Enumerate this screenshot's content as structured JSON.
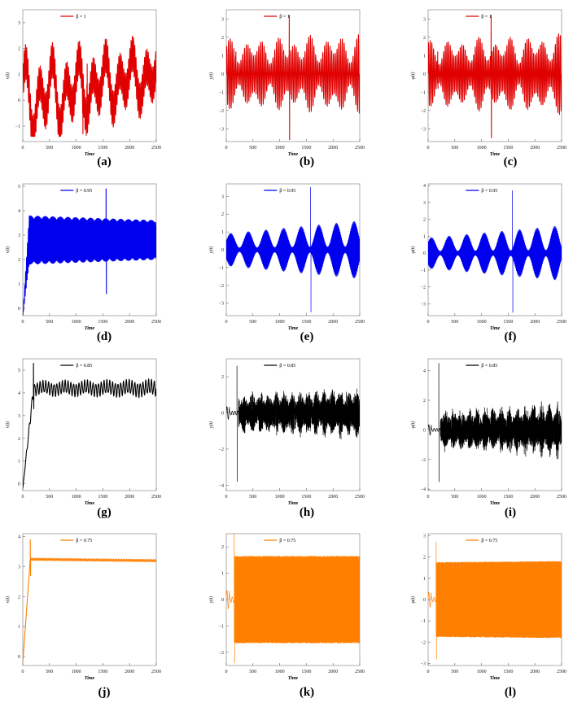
{
  "chart_data": [
    {
      "id": "a",
      "type": "line",
      "caption": "(a)",
      "legend": "β = 1",
      "xlabel": "Time",
      "ylabel": "v(t)",
      "color": "#e00000",
      "xlim": [
        0,
        2500
      ],
      "ylim": [
        -1.6,
        3.5
      ],
      "xticks": [
        0,
        500,
        1000,
        1500,
        2000,
        2500
      ],
      "yticks": [
        -1,
        0,
        1,
        2,
        3
      ],
      "x_start": 0,
      "signal": {
        "base": [
          0,
          1,
          [
            [
              1,
              1.6,
              250,
              0
            ],
            [
              0.6,
              0.9,
              500,
              1.5
            ]
          ]
        ],
        "osc": [
          1,
          1,
          [
            [
              0.7,
              0.35,
              23,
              0.3
            ]
          ]
        ],
        "spikes": [
          [
            1200,
            0.6,
            1.4
          ],
          [
            1120,
            -0.5,
            -1.3
          ]
        ],
        "clamp": [
          -1.4,
          3.4
        ]
      },
      "series": [
        {
          "name": "β = 1",
          "values_description": "oscillating signal"
        }
      ]
    },
    {
      "id": "b",
      "type": "line",
      "caption": "(b)",
      "legend": "β = 1",
      "xlabel": "Time",
      "ylabel": "y(t)",
      "color": "#e00000",
      "xlim": [
        0,
        2500
      ],
      "ylim": [
        -3.7,
        3.5
      ],
      "xticks": [
        0,
        500,
        1000,
        1500,
        2000,
        2500
      ],
      "yticks": [
        -3,
        -2,
        -1,
        0,
        1,
        2,
        3
      ],
      "x_start": 0,
      "signal": {
        "base": [
          0,
          0,
          []
        ],
        "osc": [
          1.2,
          1.4,
          [
            [
              0.6,
              0.4,
              300,
              0
            ],
            [
              0.3,
              0.2,
              500,
              1
            ]
          ]
        ],
        "carrier": 75,
        "spikes": [
          [
            1180,
            3.2,
            -3.6
          ],
          [
            180,
            1.2,
            -0.8
          ]
        ],
        "clamp": [
          -3.7,
          3.2
        ]
      },
      "series": [
        {
          "name": "β = 1"
        }
      ]
    },
    {
      "id": "c",
      "type": "line",
      "caption": "(c)",
      "legend": "β = 1",
      "xlabel": "Time",
      "ylabel": "φ(t)",
      "color": "#e00000",
      "xlim": [
        0,
        2500
      ],
      "ylim": [
        -3.7,
        3.5
      ],
      "xticks": [
        0,
        500,
        1000,
        1500,
        2000,
        2500
      ],
      "yticks": [
        -3,
        -2,
        -1,
        0,
        1,
        2,
        3
      ],
      "x_start": 0,
      "signal": {
        "base": [
          0,
          0,
          []
        ],
        "osc": [
          1.2,
          1.4,
          [
            [
              0.6,
              0.4,
              300,
              0.5
            ],
            [
              0.3,
              0.2,
              500,
              2
            ]
          ]
        ],
        "carrier": 80,
        "spikes": [
          [
            1180,
            3.2,
            -3.5
          ],
          [
            180,
            1.2,
            -0.8
          ]
        ],
        "clamp": [
          -3.5,
          3.2
        ]
      },
      "series": [
        {
          "name": "β = 1"
        }
      ]
    },
    {
      "id": "d",
      "type": "line",
      "caption": "(d)",
      "legend": "β = 0.95",
      "xlabel": "Time",
      "ylabel": "v(t)",
      "color": "#0000ee",
      "xlim": [
        0,
        2500
      ],
      "ylim": [
        -0.3,
        5.1
      ],
      "xticks": [
        0,
        500,
        1000,
        1500,
        2000,
        2500
      ],
      "yticks": [
        0,
        1,
        2,
        3,
        4,
        5
      ],
      "x_start": 0,
      "signal": {
        "base": [
          2.8,
          2.8,
          []
        ],
        "osc": [
          1,
          0.8,
          [
            [
              1,
              0.3,
              17,
              0.5
            ]
          ]
        ],
        "ramp": [
          0,
          -0.3,
          120
        ],
        "spikes": [
          [
            1560,
            4.9,
            0.6
          ]
        ],
        "clamp": [
          -0.3,
          5
        ]
      },
      "series": [
        {
          "name": "β = 0.95"
        }
      ]
    },
    {
      "id": "e",
      "type": "line",
      "caption": "(e)",
      "legend": "β = 0.95",
      "xlabel": "Time",
      "ylabel": "y(t)",
      "color": "#0000ee",
      "xlim": [
        0,
        2500
      ],
      "ylim": [
        -3.7,
        3.7
      ],
      "xticks": [
        0,
        500,
        1000,
        1500,
        2000,
        2500
      ],
      "yticks": [
        -3,
        -2,
        -1,
        0,
        1,
        2,
        3
      ],
      "x_start": 0,
      "signal": {
        "base": [
          0,
          0,
          []
        ],
        "osc": [
          0.5,
          0.9,
          [
            [
              1,
              0.8,
              330,
              0
            ]
          ]
        ],
        "carrier": 600,
        "dense": true,
        "spikes": [
          [
            1580,
            3.5,
            -3.5
          ]
        ],
        "clamp": [
          -3.6,
          3.6
        ]
      },
      "series": [
        {
          "name": "β = 0.95"
        }
      ]
    },
    {
      "id": "f",
      "type": "line",
      "caption": "(f)",
      "legend": "β = 0.95",
      "xlabel": "Time",
      "ylabel": "φ(t)",
      "color": "#0000ee",
      "xlim": [
        0,
        2500
      ],
      "ylim": [
        -3.7,
        4.1
      ],
      "xticks": [
        0,
        500,
        1000,
        1500,
        2000,
        2500
      ],
      "yticks": [
        -3,
        -2,
        -1,
        0,
        1,
        2,
        3,
        4
      ],
      "x_start": 0,
      "signal": {
        "base": [
          0,
          0,
          []
        ],
        "osc": [
          0.5,
          0.9,
          [
            [
              1,
              0.8,
              330,
              0.4
            ]
          ]
        ],
        "carrier": 600,
        "dense": true,
        "spikes": [
          [
            1580,
            3.7,
            -3.5
          ]
        ],
        "clamp": [
          -3.6,
          4
        ]
      },
      "series": [
        {
          "name": "β = 0.95"
        }
      ]
    },
    {
      "id": "g",
      "type": "line",
      "caption": "(g)",
      "legend": "β = 0.85",
      "xlabel": "Time",
      "ylabel": "v(t)",
      "color": "#000000",
      "xlim": [
        0,
        2500
      ],
      "ylim": [
        -0.3,
        5.5
      ],
      "xticks": [
        0,
        500,
        1000,
        1500,
        2000,
        2500
      ],
      "yticks": [
        0,
        1,
        2,
        3,
        4,
        5
      ],
      "x_start": 0,
      "signal": {
        "base": [
          4.2,
          4.2,
          []
        ],
        "osc": [
          0.25,
          0.3,
          [
            [
              1,
              0.4,
              60,
              0
            ]
          ]
        ],
        "carrier": 48,
        "ramp": [
          0,
          -0.2,
          200
        ],
        "spikes": [
          [
            200,
            5.3,
            3.3
          ]
        ],
        "clamp": [
          -0.2,
          5.3
        ]
      },
      "series": [
        {
          "name": "β = 0.85"
        }
      ]
    },
    {
      "id": "h",
      "type": "line",
      "caption": "(h)",
      "legend": "β = 0.85",
      "xlabel": "Time",
      "ylabel": "y(t)",
      "color": "#000000",
      "xlim": [
        0,
        2500
      ],
      "ylim": [
        -4.3,
        3.0
      ],
      "xticks": [
        0,
        500,
        1000,
        1500,
        2000,
        2500
      ],
      "yticks": [
        -4,
        -2,
        0,
        2
      ],
      "x_start": 0,
      "signal": {
        "base": [
          0,
          0,
          []
        ],
        "osc": [
          1,
          1.2,
          [
            [
              0.5,
              0.3,
              150,
              0
            ]
          ]
        ],
        "carrier": 600,
        "dense": true,
        "noisy": true,
        "quiet_until": 230,
        "spikes": [
          [
            200,
            2.6,
            -3.8
          ]
        ],
        "clamp": [
          -4,
          2.9
        ]
      },
      "series": [
        {
          "name": "β = 0.85"
        }
      ]
    },
    {
      "id": "i",
      "type": "line",
      "caption": "(i)",
      "legend": "β = 0.85",
      "xlabel": "Time",
      "ylabel": "φ(t)",
      "color": "#000000",
      "xlim": [
        0,
        2500
      ],
      "ylim": [
        -4.1,
        4.8
      ],
      "xticks": [
        0,
        500,
        1000,
        1500,
        2000,
        2500
      ],
      "yticks": [
        -4,
        -2,
        0,
        2,
        4
      ],
      "x_start": 0,
      "signal": {
        "base": [
          0,
          0,
          []
        ],
        "osc": [
          1.2,
          1.6,
          [
            [
              0.5,
              0.3,
              150,
              0.6
            ]
          ]
        ],
        "carrier": 600,
        "dense": true,
        "noisy": true,
        "quiet_until": 230,
        "spikes": [
          [
            200,
            4.5,
            -3.5
          ]
        ],
        "clamp": [
          -3.8,
          4.5
        ]
      },
      "series": [
        {
          "name": "β = 0.85"
        }
      ]
    },
    {
      "id": "j",
      "type": "line",
      "caption": "(j)",
      "legend": "β = 0.75",
      "xlabel": "Time",
      "ylabel": "v(t)",
      "color": "#ff8000",
      "xlim": [
        0,
        2500
      ],
      "ylim": [
        -0.3,
        4.1
      ],
      "xticks": [
        0,
        500,
        1000,
        1500,
        2000,
        2500
      ],
      "yticks": [
        0,
        1,
        2,
        3,
        4
      ],
      "x_start": 0,
      "signal": {
        "base": [
          3.25,
          3.2,
          []
        ],
        "osc": [
          0.04,
          0.04,
          []
        ],
        "carrier": 80,
        "ramp": [
          0,
          -0.2,
          140
        ],
        "spikes": [
          [
            140,
            3.9,
            2.7
          ]
        ],
        "clamp": [
          -0.2,
          3.95
        ]
      },
      "series": [
        {
          "name": "β = 0.75"
        }
      ]
    },
    {
      "id": "k",
      "type": "line",
      "caption": "(k)",
      "legend": "β = 0.75",
      "xlabel": "Time",
      "ylabel": "y(t)",
      "color": "#ff8000",
      "xlim": [
        0,
        2500
      ],
      "ylim": [
        -2.5,
        2.5
      ],
      "xticks": [
        0,
        500,
        1000,
        1500,
        2000,
        2500
      ],
      "yticks": [
        -2,
        -1,
        0,
        1,
        2
      ],
      "x_start": 0,
      "signal": {
        "base": [
          0,
          0,
          []
        ],
        "osc": [
          1.6,
          1.6,
          []
        ],
        "carrier": 900,
        "dense": true,
        "solid": true,
        "quiet_until": 150,
        "spikes": [
          [
            150,
            2.5,
            -2.4
          ]
        ],
        "clamp": [
          -2.45,
          2.5
        ]
      },
      "series": [
        {
          "name": "β = 0.75"
        }
      ]
    },
    {
      "id": "l",
      "type": "line",
      "caption": "(l)",
      "legend": "β = 0.75",
      "xlabel": "Time",
      "ylabel": "φ(t)",
      "color": "#ff8000",
      "xlim": [
        0,
        2500
      ],
      "ylim": [
        -3.1,
        3.1
      ],
      "xticks": [
        0,
        500,
        1000,
        1500,
        2000,
        2500
      ],
      "yticks": [
        -3,
        -2,
        -1,
        0,
        1,
        2,
        3
      ],
      "x_start": 0,
      "signal": {
        "base": [
          0,
          0,
          []
        ],
        "osc": [
          1.7,
          1.75,
          []
        ],
        "carrier": 900,
        "dense": true,
        "solid": true,
        "quiet_until": 150,
        "spikes": [
          [
            150,
            2.7,
            -2.8
          ]
        ],
        "clamp": [
          -2.9,
          2.9
        ]
      },
      "series": [
        {
          "name": "β = 0.75"
        }
      ]
    }
  ]
}
